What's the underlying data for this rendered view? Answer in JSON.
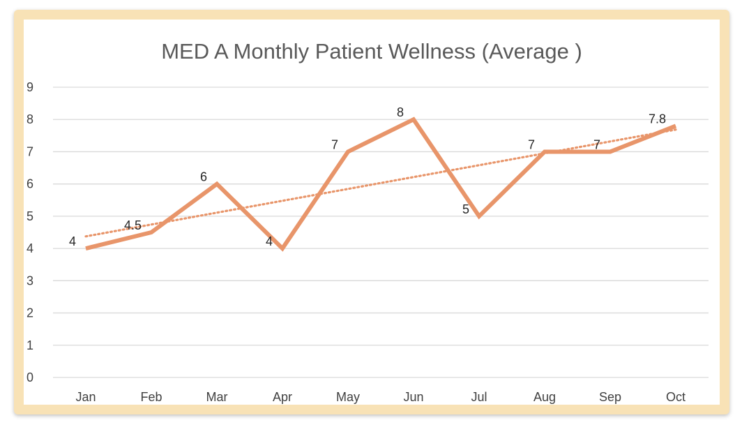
{
  "chart_data": {
    "type": "line",
    "title": "MED A Monthly Patient Wellness (Average )",
    "xlabel": "",
    "ylabel": "",
    "categories": [
      "Jan",
      "Feb",
      "Mar",
      "Apr",
      "May",
      "Jun",
      "Jul",
      "Aug",
      "Sep",
      "Oct"
    ],
    "series": [
      {
        "values": [
          4,
          4.5,
          6,
          4,
          7,
          8,
          5,
          7,
          7,
          7.8
        ],
        "labels": [
          "4",
          "4.5",
          "6",
          "4",
          "7",
          "8",
          "5",
          "7",
          "7",
          "7.8"
        ],
        "color": "#e8956a"
      }
    ],
    "trendline": {
      "type": "linear",
      "style": "dotted",
      "color": "#e8956a"
    },
    "ylim": [
      0,
      9
    ],
    "yticks": [
      0,
      1,
      2,
      3,
      4,
      5,
      6,
      7,
      8,
      9
    ],
    "grid": true,
    "legend": "none"
  },
  "colors": {
    "frame": "#f8e2b6",
    "grid": "#d9d9d9",
    "series": "#e8956a"
  }
}
